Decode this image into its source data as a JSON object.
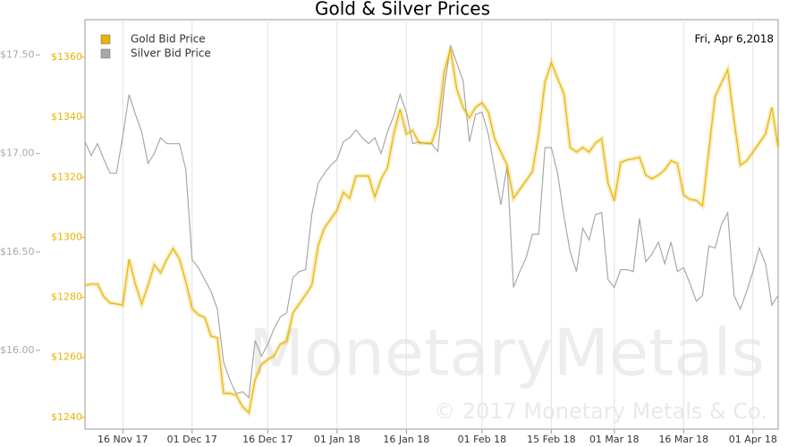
{
  "chart_data": {
    "type": "line",
    "title": "Gold & Silver Prices",
    "date_label": "Fri, Apr 6,2018",
    "watermark": "MonetaryMetals",
    "copyright": "© 2017 Monetary Metals & Co.",
    "categories": [
      null,
      null,
      null,
      null,
      null,
      null,
      "16 Nov 17",
      null,
      null,
      null,
      null,
      null,
      null,
      null,
      null,
      null,
      null,
      "01 Dec 17",
      null,
      null,
      null,
      null,
      null,
      null,
      null,
      null,
      null,
      null,
      null,
      "16 Dec 17",
      null,
      null,
      null,
      null,
      null,
      null,
      null,
      null,
      null,
      null,
      "01 Jan 18",
      null,
      null,
      null,
      null,
      null,
      null,
      null,
      null,
      null,
      null,
      "16 Jan 18",
      null,
      null,
      null,
      null,
      null,
      null,
      null,
      null,
      null,
      null,
      null,
      "01 Feb 18",
      null,
      null,
      null,
      null,
      null,
      null,
      null,
      null,
      null,
      null,
      "15 Feb 18",
      null,
      null,
      null,
      null,
      null,
      null,
      null,
      null,
      null,
      "01 Mar 18",
      null,
      null,
      null,
      null,
      null,
      null,
      null,
      null,
      null,
      null,
      "16 Mar 18",
      null,
      null,
      null,
      null,
      null,
      null,
      null,
      null,
      null,
      null,
      "01 Apr 18",
      null,
      null,
      null,
      null
    ],
    "series": [
      {
        "name": "Gold Bid Price",
        "color": "#e8b400",
        "axis": "y",
        "values": [
          1284,
          1284.4,
          1284.4,
          1280.2,
          1278.1,
          1277.8,
          1277.5,
          1292.7,
          1284.4,
          1277.8,
          1284,
          1290.9,
          1288.2,
          1292.7,
          1296.3,
          1292.7,
          1285.3,
          1276.3,
          1274.2,
          1273.3,
          1267.1,
          1266.5,
          1248,
          1248,
          1247.4,
          1243.6,
          1241.5,
          1252.5,
          1257.6,
          1259.3,
          1260.5,
          1264.4,
          1265.3,
          1274.8,
          1277.8,
          1280.8,
          1284,
          1297.2,
          1303.1,
          1306.1,
          1309.1,
          1315,
          1313,
          1320.4,
          1320.4,
          1320.4,
          1313.5,
          1319.5,
          1323.1,
          1334.4,
          1342.7,
          1334.4,
          1335.6,
          1331.4,
          1331.4,
          1331.4,
          1337.4,
          1355.2,
          1362.7,
          1349.3,
          1343.3,
          1339.8,
          1343.3,
          1344.8,
          1341.8,
          1332.9,
          1328.4,
          1324,
          1313,
          1315.9,
          1318.9,
          1321.9,
          1334.4,
          1351.7,
          1358.2,
          1352.9,
          1347.8,
          1329.9,
          1328.4,
          1329.9,
          1328.4,
          1331.4,
          1332.9,
          1318,
          1312.1,
          1324.9,
          1325.8,
          1326.1,
          1326.7,
          1320.7,
          1319.5,
          1320.7,
          1322.5,
          1325.5,
          1324.6,
          1314.1,
          1312.6,
          1312.3,
          1310.5,
          1329,
          1346.9,
          1351.4,
          1355.8,
          1338.9,
          1324,
          1325.5,
          1328.4,
          1331.4,
          1334.4,
          1343.3,
          1329.9
        ]
      },
      {
        "name": "Silver Bid Price",
        "color": "#a8a8a8",
        "axis": "y2",
        "values": [
          17.06,
          16.99,
          17.05,
          16.97,
          16.9,
          16.9,
          17.09,
          17.3,
          17.2,
          17.11,
          16.95,
          17,
          17.08,
          17.05,
          17.05,
          17.05,
          16.92,
          16.46,
          16.42,
          16.36,
          16.3,
          16.21,
          15.94,
          15.85,
          15.78,
          15.79,
          15.76,
          16.05,
          15.97,
          16.03,
          16.11,
          16.17,
          16.19,
          16.37,
          16.4,
          16.41,
          16.69,
          16.85,
          16.9,
          16.94,
          16.97,
          17.06,
          17.08,
          17.12,
          17.08,
          17.05,
          17.08,
          17,
          17.11,
          17.19,
          17.3,
          17.21,
          17.05,
          17.06,
          17.05,
          17.05,
          17.01,
          17.33,
          17.55,
          17.46,
          17.37,
          17.06,
          17.2,
          17.21,
          17.1,
          16.92,
          16.74,
          16.94,
          16.32,
          16.4,
          16.47,
          16.59,
          16.59,
          17.03,
          17.03,
          16.9,
          16.68,
          16.5,
          16.4,
          16.62,
          16.56,
          16.69,
          16.7,
          16.36,
          16.32,
          16.41,
          16.41,
          16.4,
          16.67,
          16.45,
          16.49,
          16.55,
          16.44,
          16.55,
          16.4,
          16.42,
          16.34,
          16.25,
          16.28,
          16.53,
          16.52,
          16.64,
          16.7,
          16.28,
          16.21,
          16.3,
          16.4,
          16.52,
          16.44,
          16.23,
          16.28
        ]
      }
    ],
    "ylim": [
      1236.1,
      1372.5
    ],
    "yticks": [
      {
        "value": 1240,
        "label": "$1240"
      },
      {
        "value": 1260,
        "label": "$1260"
      },
      {
        "value": 1280,
        "label": "$1280"
      },
      {
        "value": 1300,
        "label": "$1300"
      },
      {
        "value": 1320,
        "label": "$1320"
      },
      {
        "value": 1340,
        "label": "$1340"
      },
      {
        "value": 1360,
        "label": "$1360"
      }
    ],
    "y2lim": [
      15.6,
      17.68
    ],
    "y2ticks": [
      {
        "value": 16,
        "label": "$16.00"
      },
      {
        "value": 16.5,
        "label": "$16.50"
      },
      {
        "value": 17,
        "label": "$17.00"
      },
      {
        "value": 17.5,
        "label": "$17.50"
      }
    ],
    "grid": true,
    "legend": "top-left"
  }
}
